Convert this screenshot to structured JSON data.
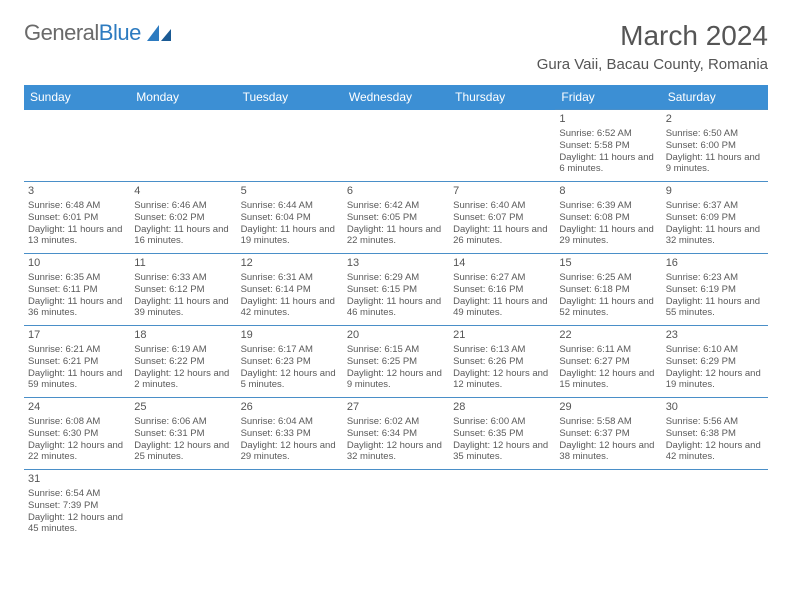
{
  "brand": {
    "name_part1": "General",
    "name_part2": "Blue"
  },
  "title": "March 2024",
  "location": "Gura Vaii, Bacau County, Romania",
  "colors": {
    "header_bg": "#3c8fd4",
    "header_text": "#ffffff",
    "cell_border": "#4a8fc8",
    "text": "#5a5a5a",
    "logo_blue": "#2d7bc0",
    "logo_gray": "#6a6a6a"
  },
  "fonts": {
    "title_size": 28,
    "location_size": 15,
    "daynum_size": 11,
    "detail_size": 9.5
  },
  "weekdays": [
    "Sunday",
    "Monday",
    "Tuesday",
    "Wednesday",
    "Thursday",
    "Friday",
    "Saturday"
  ],
  "grid": [
    [
      null,
      null,
      null,
      null,
      null,
      {
        "num": "1",
        "sunrise": "Sunrise: 6:52 AM",
        "sunset": "Sunset: 5:58 PM",
        "daylight": "Daylight: 11 hours and 6 minutes."
      },
      {
        "num": "2",
        "sunrise": "Sunrise: 6:50 AM",
        "sunset": "Sunset: 6:00 PM",
        "daylight": "Daylight: 11 hours and 9 minutes."
      }
    ],
    [
      {
        "num": "3",
        "sunrise": "Sunrise: 6:48 AM",
        "sunset": "Sunset: 6:01 PM",
        "daylight": "Daylight: 11 hours and 13 minutes."
      },
      {
        "num": "4",
        "sunrise": "Sunrise: 6:46 AM",
        "sunset": "Sunset: 6:02 PM",
        "daylight": "Daylight: 11 hours and 16 minutes."
      },
      {
        "num": "5",
        "sunrise": "Sunrise: 6:44 AM",
        "sunset": "Sunset: 6:04 PM",
        "daylight": "Daylight: 11 hours and 19 minutes."
      },
      {
        "num": "6",
        "sunrise": "Sunrise: 6:42 AM",
        "sunset": "Sunset: 6:05 PM",
        "daylight": "Daylight: 11 hours and 22 minutes."
      },
      {
        "num": "7",
        "sunrise": "Sunrise: 6:40 AM",
        "sunset": "Sunset: 6:07 PM",
        "daylight": "Daylight: 11 hours and 26 minutes."
      },
      {
        "num": "8",
        "sunrise": "Sunrise: 6:39 AM",
        "sunset": "Sunset: 6:08 PM",
        "daylight": "Daylight: 11 hours and 29 minutes."
      },
      {
        "num": "9",
        "sunrise": "Sunrise: 6:37 AM",
        "sunset": "Sunset: 6:09 PM",
        "daylight": "Daylight: 11 hours and 32 minutes."
      }
    ],
    [
      {
        "num": "10",
        "sunrise": "Sunrise: 6:35 AM",
        "sunset": "Sunset: 6:11 PM",
        "daylight": "Daylight: 11 hours and 36 minutes."
      },
      {
        "num": "11",
        "sunrise": "Sunrise: 6:33 AM",
        "sunset": "Sunset: 6:12 PM",
        "daylight": "Daylight: 11 hours and 39 minutes."
      },
      {
        "num": "12",
        "sunrise": "Sunrise: 6:31 AM",
        "sunset": "Sunset: 6:14 PM",
        "daylight": "Daylight: 11 hours and 42 minutes."
      },
      {
        "num": "13",
        "sunrise": "Sunrise: 6:29 AM",
        "sunset": "Sunset: 6:15 PM",
        "daylight": "Daylight: 11 hours and 46 minutes."
      },
      {
        "num": "14",
        "sunrise": "Sunrise: 6:27 AM",
        "sunset": "Sunset: 6:16 PM",
        "daylight": "Daylight: 11 hours and 49 minutes."
      },
      {
        "num": "15",
        "sunrise": "Sunrise: 6:25 AM",
        "sunset": "Sunset: 6:18 PM",
        "daylight": "Daylight: 11 hours and 52 minutes."
      },
      {
        "num": "16",
        "sunrise": "Sunrise: 6:23 AM",
        "sunset": "Sunset: 6:19 PM",
        "daylight": "Daylight: 11 hours and 55 minutes."
      }
    ],
    [
      {
        "num": "17",
        "sunrise": "Sunrise: 6:21 AM",
        "sunset": "Sunset: 6:21 PM",
        "daylight": "Daylight: 11 hours and 59 minutes."
      },
      {
        "num": "18",
        "sunrise": "Sunrise: 6:19 AM",
        "sunset": "Sunset: 6:22 PM",
        "daylight": "Daylight: 12 hours and 2 minutes."
      },
      {
        "num": "19",
        "sunrise": "Sunrise: 6:17 AM",
        "sunset": "Sunset: 6:23 PM",
        "daylight": "Daylight: 12 hours and 5 minutes."
      },
      {
        "num": "20",
        "sunrise": "Sunrise: 6:15 AM",
        "sunset": "Sunset: 6:25 PM",
        "daylight": "Daylight: 12 hours and 9 minutes."
      },
      {
        "num": "21",
        "sunrise": "Sunrise: 6:13 AM",
        "sunset": "Sunset: 6:26 PM",
        "daylight": "Daylight: 12 hours and 12 minutes."
      },
      {
        "num": "22",
        "sunrise": "Sunrise: 6:11 AM",
        "sunset": "Sunset: 6:27 PM",
        "daylight": "Daylight: 12 hours and 15 minutes."
      },
      {
        "num": "23",
        "sunrise": "Sunrise: 6:10 AM",
        "sunset": "Sunset: 6:29 PM",
        "daylight": "Daylight: 12 hours and 19 minutes."
      }
    ],
    [
      {
        "num": "24",
        "sunrise": "Sunrise: 6:08 AM",
        "sunset": "Sunset: 6:30 PM",
        "daylight": "Daylight: 12 hours and 22 minutes."
      },
      {
        "num": "25",
        "sunrise": "Sunrise: 6:06 AM",
        "sunset": "Sunset: 6:31 PM",
        "daylight": "Daylight: 12 hours and 25 minutes."
      },
      {
        "num": "26",
        "sunrise": "Sunrise: 6:04 AM",
        "sunset": "Sunset: 6:33 PM",
        "daylight": "Daylight: 12 hours and 29 minutes."
      },
      {
        "num": "27",
        "sunrise": "Sunrise: 6:02 AM",
        "sunset": "Sunset: 6:34 PM",
        "daylight": "Daylight: 12 hours and 32 minutes."
      },
      {
        "num": "28",
        "sunrise": "Sunrise: 6:00 AM",
        "sunset": "Sunset: 6:35 PM",
        "daylight": "Daylight: 12 hours and 35 minutes."
      },
      {
        "num": "29",
        "sunrise": "Sunrise: 5:58 AM",
        "sunset": "Sunset: 6:37 PM",
        "daylight": "Daylight: 12 hours and 38 minutes."
      },
      {
        "num": "30",
        "sunrise": "Sunrise: 5:56 AM",
        "sunset": "Sunset: 6:38 PM",
        "daylight": "Daylight: 12 hours and 42 minutes."
      }
    ],
    [
      {
        "num": "31",
        "sunrise": "Sunrise: 6:54 AM",
        "sunset": "Sunset: 7:39 PM",
        "daylight": "Daylight: 12 hours and 45 minutes."
      },
      null,
      null,
      null,
      null,
      null,
      null
    ]
  ]
}
